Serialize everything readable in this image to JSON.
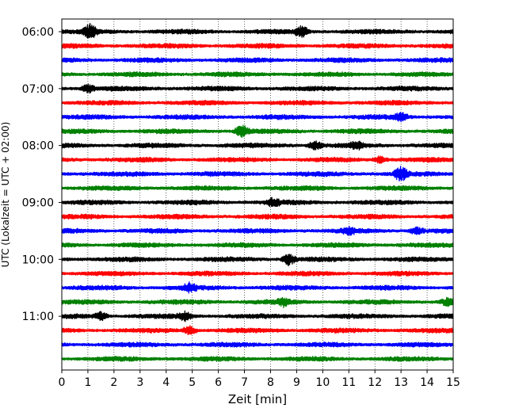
{
  "chart_data": {
    "type": "line",
    "title": "",
    "xlabel": "Zeit  [min]",
    "ylabel": "UTC (Lokalzeit = UTC + 02:00)",
    "xlim": [
      0,
      15
    ],
    "x_ticks": [
      "0",
      "1",
      "2",
      "3",
      "4",
      "5",
      "6",
      "7",
      "8",
      "9",
      "10",
      "11",
      "12",
      "13",
      "14",
      "15"
    ],
    "y_time_range": [
      "06:00",
      "12:00"
    ],
    "y_ticks": [
      "06:00",
      "07:00",
      "08:00",
      "09:00",
      "10:00",
      "11:00"
    ],
    "trace_interval_minutes": 15,
    "trace_colors": [
      "#000000",
      "#ff0000",
      "#0000ff",
      "#008000"
    ],
    "vertical_grid": "dotted",
    "legend": "none",
    "traces": [
      {
        "start": "06:00",
        "color": "#000000",
        "events": [
          {
            "minute": 1.1,
            "amplitude": 2.5
          },
          {
            "minute": 9.2,
            "amplitude": 2.0
          }
        ]
      },
      {
        "start": "06:15",
        "color": "#ff0000",
        "events": []
      },
      {
        "start": "06:30",
        "color": "#0000ff",
        "events": []
      },
      {
        "start": "06:45",
        "color": "#008000",
        "events": []
      },
      {
        "start": "07:00",
        "color": "#000000",
        "events": [
          {
            "minute": 1.0,
            "amplitude": 1.5
          }
        ]
      },
      {
        "start": "07:15",
        "color": "#ff0000",
        "events": []
      },
      {
        "start": "07:30",
        "color": "#0000ff",
        "events": [
          {
            "minute": 13.0,
            "amplitude": 1.5
          }
        ]
      },
      {
        "start": "07:45",
        "color": "#008000",
        "events": [
          {
            "minute": 6.9,
            "amplitude": 2.2
          }
        ]
      },
      {
        "start": "08:00",
        "color": "#000000",
        "events": [
          {
            "minute": 9.7,
            "amplitude": 1.5
          },
          {
            "minute": 11.3,
            "amplitude": 1.3
          }
        ]
      },
      {
        "start": "08:15",
        "color": "#ff0000",
        "events": [
          {
            "minute": 12.2,
            "amplitude": 1.2
          }
        ]
      },
      {
        "start": "08:30",
        "color": "#0000ff",
        "events": [
          {
            "minute": 13.0,
            "amplitude": 2.6
          }
        ]
      },
      {
        "start": "08:45",
        "color": "#008000",
        "events": []
      },
      {
        "start": "09:00",
        "color": "#000000",
        "events": [
          {
            "minute": 8.1,
            "amplitude": 1.4
          }
        ]
      },
      {
        "start": "09:15",
        "color": "#ff0000",
        "events": []
      },
      {
        "start": "09:30",
        "color": "#0000ff",
        "events": [
          {
            "minute": 11.0,
            "amplitude": 1.2
          },
          {
            "minute": 13.6,
            "amplitude": 1.2
          }
        ]
      },
      {
        "start": "09:45",
        "color": "#008000",
        "events": []
      },
      {
        "start": "10:00",
        "color": "#000000",
        "events": [
          {
            "minute": 8.7,
            "amplitude": 2.0
          }
        ]
      },
      {
        "start": "10:15",
        "color": "#ff0000",
        "events": []
      },
      {
        "start": "10:30",
        "color": "#0000ff",
        "events": [
          {
            "minute": 4.9,
            "amplitude": 1.4
          }
        ]
      },
      {
        "start": "10:45",
        "color": "#008000",
        "events": [
          {
            "minute": 8.5,
            "amplitude": 1.3
          },
          {
            "minute": 14.8,
            "amplitude": 1.3
          }
        ]
      },
      {
        "start": "11:00",
        "color": "#000000",
        "events": [
          {
            "minute": 1.5,
            "amplitude": 1.4
          },
          {
            "minute": 4.7,
            "amplitude": 1.6
          }
        ]
      },
      {
        "start": "11:15",
        "color": "#ff0000",
        "events": [
          {
            "minute": 4.9,
            "amplitude": 1.6
          }
        ]
      },
      {
        "start": "11:30",
        "color": "#0000ff",
        "events": []
      },
      {
        "start": "11:45",
        "color": "#008000",
        "events": []
      }
    ]
  }
}
